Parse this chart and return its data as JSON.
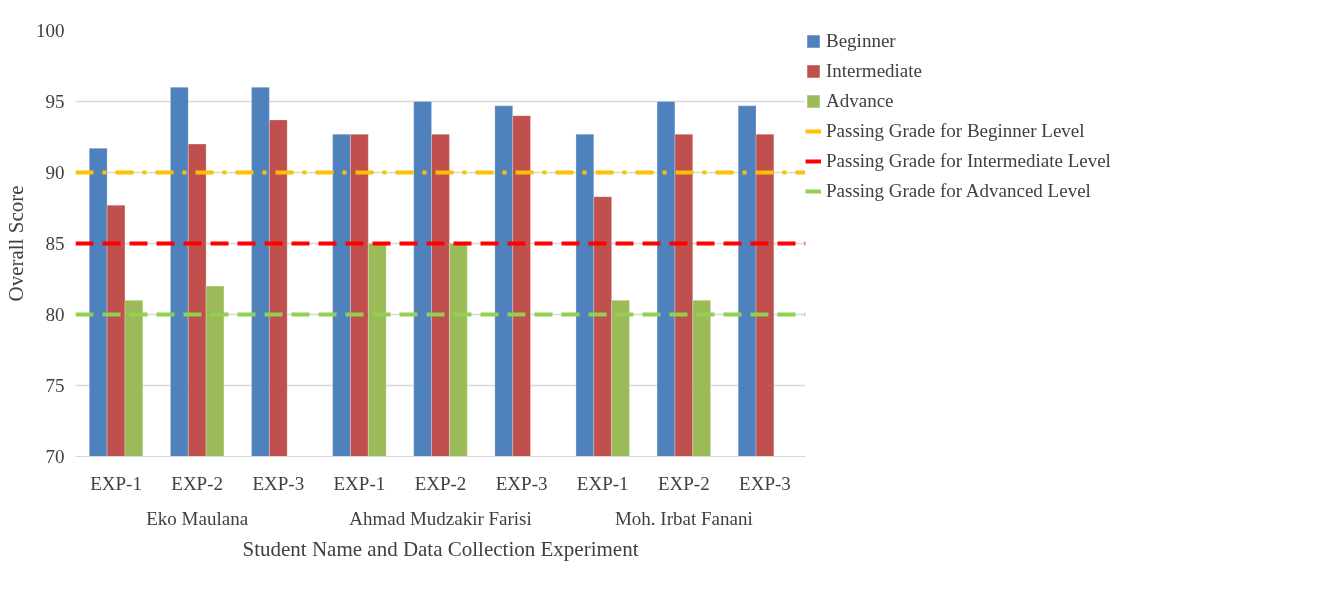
{
  "chart_data": {
    "type": "bar",
    "xlabel": "Student Name and Data Collection Experiment",
    "ylabel": "Overall Score",
    "categories": [
      "EXP-1",
      "EXP-2",
      "EXP-3",
      "EXP-1",
      "EXP-2",
      "EXP-3",
      "EXP-1",
      "EXP-2",
      "EXP-3"
    ],
    "annotations": [
      "Eko Maulana",
      "Ahmad Mudzakir Farisi",
      "Moh. Irbat Fanani"
    ],
    "series": [
      {
        "name": "Beginner",
        "color": "#4f81bd",
        "values": [
          91.7,
          96,
          96,
          92.7,
          95,
          94.7,
          92.7,
          95,
          94.7
        ]
      },
      {
        "name": "Intermediate",
        "color": "#c0504d",
        "values": [
          87.7,
          92,
          93.7,
          92.7,
          92.7,
          94,
          88.3,
          92.7,
          92.7
        ]
      },
      {
        "name": "Advance",
        "color": "#9bbb59",
        "values": [
          81,
          82,
          null,
          85,
          85,
          null,
          81,
          81,
          null
        ]
      }
    ],
    "ref_lines": [
      {
        "axis": "y",
        "value": 90,
        "label": "Passing Grade for Beginner Level",
        "color": "#ffc000",
        "line_style": "dashdot"
      },
      {
        "axis": "y",
        "value": 85,
        "label": "Passing Grade for Intermediate Level",
        "color": "#ff0000",
        "line_style": "dashed"
      },
      {
        "axis": "y",
        "value": 80,
        "label": "Passing Grade for Advanced Level",
        "color": "#92d050",
        "line_style": "dashed"
      }
    ],
    "ylim": [
      70,
      100
    ],
    "yticks": [
      70,
      75,
      80,
      85,
      90,
      95,
      100
    ],
    "grid": "y",
    "legend": "right"
  }
}
